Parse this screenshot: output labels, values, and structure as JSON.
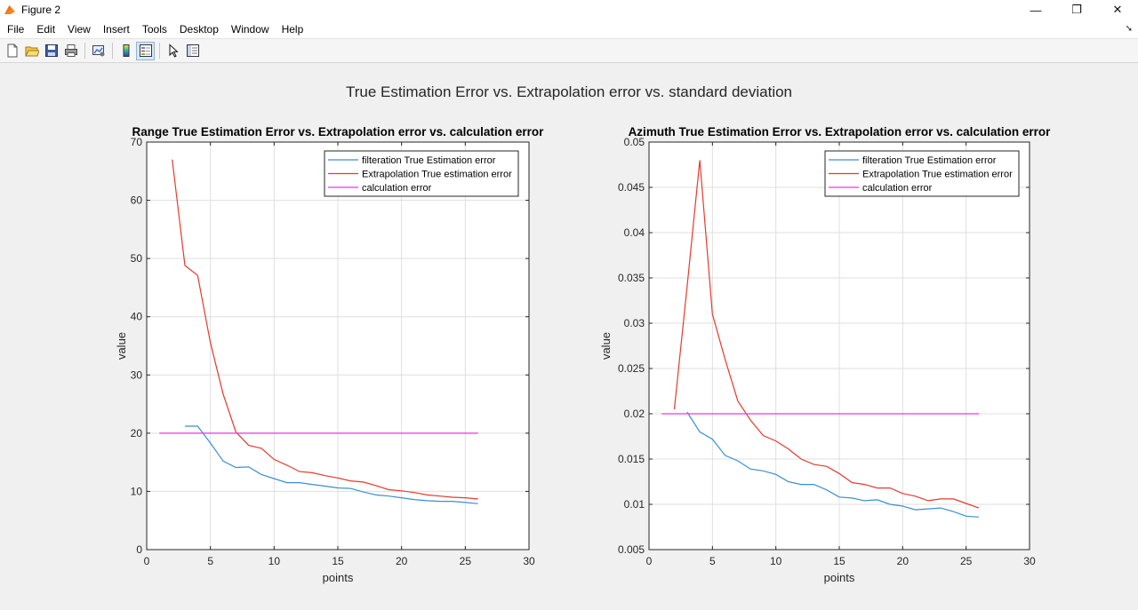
{
  "window": {
    "title": "Figure 2",
    "controls": {
      "minimize": "—",
      "maximize": "❐",
      "close": "✕"
    }
  },
  "menu": {
    "items": [
      "File",
      "Edit",
      "View",
      "Insert",
      "Tools",
      "Desktop",
      "Window",
      "Help"
    ]
  },
  "toolbar": {
    "icons": [
      "new-figure-icon",
      "open-file-icon",
      "save-icon",
      "print-icon",
      "link-plot-icon",
      "colorbar-icon",
      "legend-icon",
      "edit-plot-icon",
      "property-inspector-icon"
    ]
  },
  "figure": {
    "suptitle": "True Estimation Error vs. Extrapolation error vs. standard deviation"
  },
  "colors": {
    "filteration": "#3a8fd0",
    "extrapolation": "#e53a2c",
    "calculation": "#ee33ee"
  },
  "chart_data": [
    {
      "type": "line",
      "title": "Range True Estimation Error vs. Extrapolation error vs. calculation error",
      "xlabel": "points",
      "ylabel": "value",
      "xlim": [
        0,
        30
      ],
      "ylim": [
        0,
        70
      ],
      "xticks": [
        "0",
        "5",
        "10",
        "15",
        "20",
        "25",
        "30"
      ],
      "yticks": [
        "0",
        "10",
        "20",
        "30",
        "40",
        "50",
        "60",
        "70"
      ],
      "grid": true,
      "legend": "top-right",
      "series": [
        {
          "name": "filteration True Estimation error",
          "x": [
            3,
            4,
            5,
            6,
            7,
            8,
            9,
            10,
            11,
            12,
            13,
            14,
            15,
            16,
            17,
            18,
            19,
            20,
            21,
            22,
            23,
            24,
            25,
            26
          ],
          "y": [
            21.2,
            21.2,
            18.3,
            15.2,
            14.1,
            14.2,
            12.9,
            12.2,
            11.5,
            11.5,
            11.2,
            10.9,
            10.6,
            10.5,
            9.9,
            9.4,
            9.2,
            8.9,
            8.6,
            8.4,
            8.3,
            8.3,
            8.1,
            7.9
          ]
        },
        {
          "name": "Extrapolation True estimation error",
          "x": [
            2,
            3,
            4,
            5,
            6,
            7,
            8,
            9,
            10,
            11,
            12,
            13,
            14,
            15,
            16,
            17,
            18,
            19,
            20,
            21,
            22,
            23,
            24,
            25,
            26
          ],
          "y": [
            67.0,
            48.8,
            47.1,
            35.5,
            26.7,
            20.2,
            17.9,
            17.4,
            15.5,
            14.5,
            13.4,
            13.2,
            12.7,
            12.3,
            11.8,
            11.6,
            11.0,
            10.3,
            10.1,
            9.8,
            9.4,
            9.2,
            9.0,
            8.9,
            8.7
          ]
        },
        {
          "name": "calculation error",
          "x": [
            1,
            26
          ],
          "y": [
            20,
            20
          ]
        }
      ]
    },
    {
      "type": "line",
      "title": "Azimuth True Estimation Error vs. Extrapolation error vs. calculation error",
      "xlabel": "points",
      "ylabel": "value",
      "xlim": [
        0,
        30
      ],
      "ylim": [
        0.005,
        0.05
      ],
      "xticks": [
        "0",
        "5",
        "10",
        "15",
        "20",
        "25",
        "30"
      ],
      "yticks": [
        "0.005",
        "0.01",
        "0.015",
        "0.02",
        "0.025",
        "0.03",
        "0.035",
        "0.04",
        "0.045",
        "0.05"
      ],
      "grid": true,
      "legend": "top-right",
      "series": [
        {
          "name": "filteration True Estimation error",
          "x": [
            3,
            4,
            5,
            6,
            7,
            8,
            9,
            10,
            11,
            12,
            13,
            14,
            15,
            16,
            17,
            18,
            19,
            20,
            21,
            22,
            23,
            24,
            25,
            26
          ],
          "y": [
            0.0202,
            0.018,
            0.0172,
            0.0154,
            0.0148,
            0.0139,
            0.0137,
            0.0133,
            0.0125,
            0.0122,
            0.0122,
            0.0116,
            0.0108,
            0.0107,
            0.0104,
            0.0105,
            0.01,
            0.0098,
            0.0094,
            0.0095,
            0.0096,
            0.0092,
            0.0087,
            0.0086
          ]
        },
        {
          "name": "Extrapolation True estimation error",
          "x": [
            2,
            3,
            4,
            5,
            6,
            7,
            8,
            9,
            10,
            11,
            12,
            13,
            14,
            15,
            16,
            17,
            18,
            19,
            20,
            21,
            22,
            23,
            24,
            25,
            26
          ],
          "y": [
            0.0205,
            0.034,
            0.048,
            0.031,
            0.026,
            0.0214,
            0.0193,
            0.0176,
            0.017,
            0.0161,
            0.015,
            0.0144,
            0.0142,
            0.0134,
            0.0124,
            0.0122,
            0.0118,
            0.0118,
            0.0112,
            0.0109,
            0.0104,
            0.0106,
            0.0106,
            0.0101,
            0.0096
          ]
        },
        {
          "name": "calculation error",
          "x": [
            1,
            26
          ],
          "y": [
            0.02,
            0.02
          ]
        }
      ]
    }
  ]
}
